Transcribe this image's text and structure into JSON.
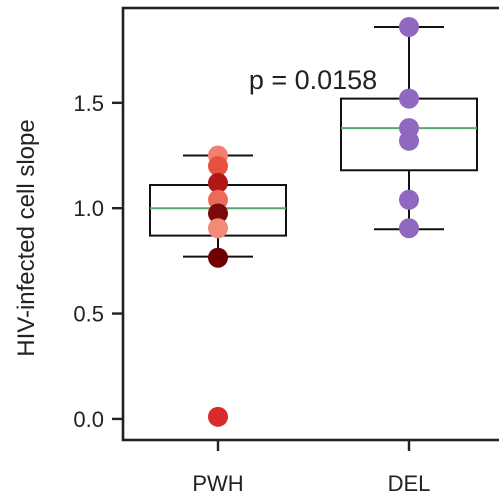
{
  "chart_data": {
    "type": "box",
    "categories": [
      "PWH",
      "DEL"
    ],
    "ylabel": "HIV-infected cell slope",
    "xlabel": "",
    "ylim": [
      -0.1,
      1.95
    ],
    "yticks": [
      0.0,
      0.5,
      1.0,
      1.5
    ],
    "ytick_labels": [
      "0.0",
      "0.5",
      "1.0",
      "1.5"
    ],
    "grid": false,
    "annotation": "p = 0.0158",
    "boxes": [
      {
        "category": "PWH",
        "whisker_low": 0.77,
        "q1": 0.87,
        "median": 1.0,
        "q3": 1.11,
        "whisker_high": 1.25,
        "median_color": "#5aa672",
        "points": [
          {
            "y": 1.25,
            "color": "#f08070"
          },
          {
            "y": 1.2,
            "color": "#e8503f"
          },
          {
            "y": 1.12,
            "color": "#b01818"
          },
          {
            "y": 1.04,
            "color": "#ec6a5a"
          },
          {
            "y": 0.975,
            "color": "#7c0a0a"
          },
          {
            "y": 0.905,
            "color": "#f28a78"
          },
          {
            "y": 0.765,
            "color": "#6e0000"
          },
          {
            "y": 0.01,
            "color": "#d92b2b"
          }
        ]
      },
      {
        "category": "DEL",
        "whisker_low": 0.9,
        "q1": 1.18,
        "median": 1.38,
        "q3": 1.52,
        "whisker_high": 1.86,
        "median_color": "#5aa672",
        "points": [
          {
            "y": 1.86,
            "color": "#9068bf"
          },
          {
            "y": 1.52,
            "color": "#9068bf"
          },
          {
            "y": 1.38,
            "color": "#9068bf"
          },
          {
            "y": 1.32,
            "color": "#9068bf"
          },
          {
            "y": 1.04,
            "color": "#9068bf"
          },
          {
            "y": 0.905,
            "color": "#9068bf"
          }
        ]
      }
    ]
  }
}
